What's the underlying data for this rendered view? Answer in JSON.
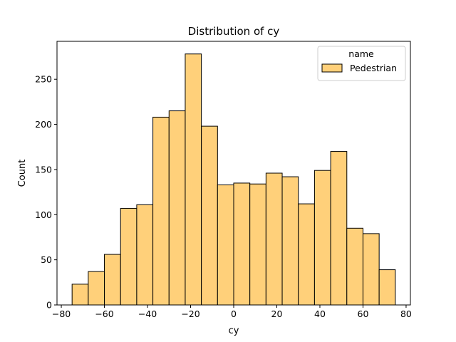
{
  "chart_data": {
    "type": "bar",
    "title": "Distribution of cy",
    "xlabel": "cy",
    "ylabel": "Count",
    "xlim": [
      -82,
      82
    ],
    "ylim": [
      0,
      292
    ],
    "xticks": [
      -80,
      -60,
      -40,
      -20,
      0,
      20,
      40,
      60,
      80
    ],
    "xtick_labels": [
      "−80",
      "−60",
      "−40",
      "−20",
      "0",
      "20",
      "40",
      "60",
      "80"
    ],
    "yticks": [
      0,
      50,
      100,
      150,
      200,
      250
    ],
    "ytick_labels": [
      "0",
      "50",
      "100",
      "150",
      "200",
      "250"
    ],
    "grid": false,
    "legend": {
      "title": "name",
      "entries": [
        "Pedestrian"
      ],
      "placement": "top-right"
    },
    "series": [
      {
        "name": "Pedestrian",
        "color": "#ffd07a",
        "edgecolor": "#000000",
        "bins": [
          {
            "x0": -75.0,
            "x1": -67.5,
            "count": 23
          },
          {
            "x0": -67.5,
            "x1": -60.0,
            "count": 37
          },
          {
            "x0": -60.0,
            "x1": -52.5,
            "count": 56
          },
          {
            "x0": -52.5,
            "x1": -45.0,
            "count": 107
          },
          {
            "x0": -45.0,
            "x1": -37.5,
            "count": 111
          },
          {
            "x0": -37.5,
            "x1": -30.0,
            "count": 208
          },
          {
            "x0": -30.0,
            "x1": -22.5,
            "count": 215
          },
          {
            "x0": -22.5,
            "x1": -15.0,
            "count": 278
          },
          {
            "x0": -15.0,
            "x1": -7.5,
            "count": 198
          },
          {
            "x0": -7.5,
            "x1": 0.0,
            "count": 133
          },
          {
            "x0": 0.0,
            "x1": 7.5,
            "count": 135
          },
          {
            "x0": 7.5,
            "x1": 15.0,
            "count": 134
          },
          {
            "x0": 15.0,
            "x1": 22.5,
            "count": 146
          },
          {
            "x0": 22.5,
            "x1": 30.0,
            "count": 142
          },
          {
            "x0": 30.0,
            "x1": 37.5,
            "count": 112
          },
          {
            "x0": 37.5,
            "x1": 45.0,
            "count": 149
          },
          {
            "x0": 45.0,
            "x1": 52.5,
            "count": 170
          },
          {
            "x0": 52.5,
            "x1": 60.0,
            "count": 85
          },
          {
            "x0": 60.0,
            "x1": 67.5,
            "count": 79
          },
          {
            "x0": 67.5,
            "x1": 75.0,
            "count": 39
          }
        ]
      }
    ]
  }
}
